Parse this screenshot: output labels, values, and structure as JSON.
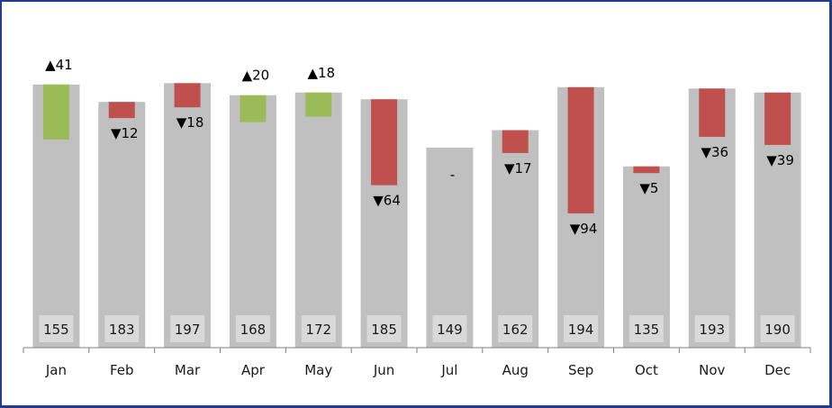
{
  "chart_data": {
    "type": "bar",
    "categories": [
      "Jan",
      "Feb",
      "Mar",
      "Apr",
      "May",
      "Jun",
      "Jul",
      "Aug",
      "Sep",
      "Oct",
      "Nov",
      "Dec"
    ],
    "series": [
      {
        "values": [
          155,
          183,
          197,
          168,
          172,
          185,
          149,
          162,
          194,
          135,
          193,
          190
        ]
      },
      {
        "values": [
          196,
          171,
          179,
          188,
          190,
          121,
          149,
          145,
          100,
          130,
          157,
          151
        ]
      }
    ],
    "variance": [
      41,
      -12,
      -18,
      20,
      18,
      -64,
      0,
      -17,
      -94,
      -5,
      -36,
      -39
    ],
    "base_labels": [
      "155",
      "183",
      "197",
      "168",
      "172",
      "185",
      "149",
      "162",
      "194",
      "135",
      "193",
      "190"
    ],
    "variance_labels": [
      "▲41",
      "▼12",
      "▼18",
      "▲20",
      "▲18",
      "▼64",
      "-",
      "▼17",
      "▼94",
      "▼5",
      "▼36",
      "▼39"
    ],
    "ylim": [
      0,
      216
    ],
    "grid": false,
    "legend": "none",
    "colors": {
      "base": "#c0c0c0",
      "up": "#9bbb59",
      "down": "#c0504d",
      "base_label_bg": "#d9d9d9",
      "axis": "#808080",
      "frame": "#1f3d8c"
    }
  }
}
